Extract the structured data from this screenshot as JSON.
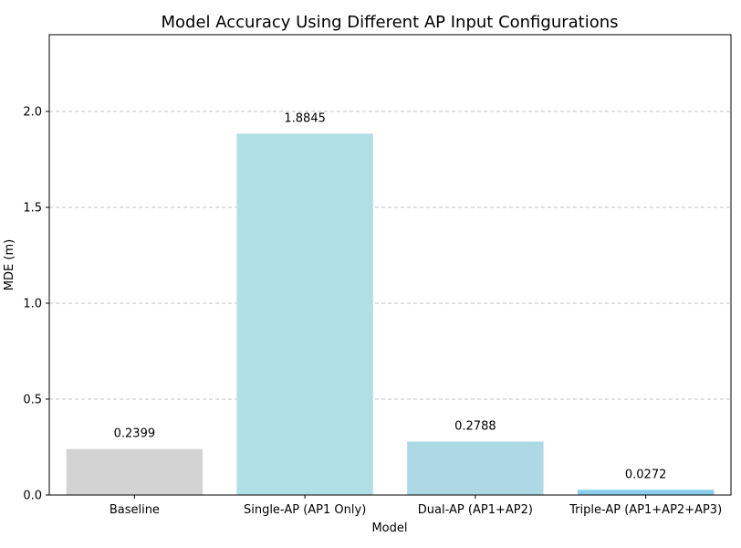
{
  "chart_data": {
    "type": "bar",
    "title": "Model Accuracy Using Different AP Input Configurations",
    "xlabel": "Model",
    "ylabel": "MDE (m)",
    "categories": [
      "Baseline",
      "Single-AP (AP1 Only)",
      "Dual-AP (AP1+AP2)",
      "Triple-AP (AP1+AP2+AP3)"
    ],
    "values": [
      0.2399,
      1.8845,
      0.2788,
      0.0272
    ],
    "value_labels": [
      "0.2399",
      "1.8845",
      "0.2788",
      "0.0272"
    ],
    "colors": [
      "#d3d3d3",
      "#b0e0e6",
      "#add8e6",
      "#87ceeb"
    ],
    "ylim": [
      0,
      2.4
    ],
    "yticks": [
      0.0,
      0.5,
      1.0,
      1.5,
      2.0
    ],
    "ytick_labels": [
      "0.0",
      "0.5",
      "1.0",
      "1.5",
      "2.0"
    ],
    "grid": "y-dashed",
    "legend": "none"
  }
}
